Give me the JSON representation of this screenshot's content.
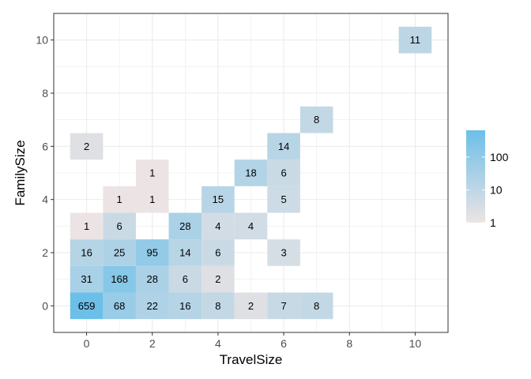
{
  "chart_data": {
    "type": "heatmap",
    "xlabel": "TravelSize",
    "ylabel": "FamilySize",
    "xlim": [
      -1,
      11
    ],
    "ylim": [
      -1,
      11
    ],
    "x_ticks": [
      0,
      2,
      4,
      6,
      8,
      10
    ],
    "y_ticks": [
      0,
      2,
      4,
      6,
      8,
      10
    ],
    "grid": true,
    "color_scale": {
      "type": "log10",
      "low_color": "#ece4e4",
      "high_color": "#6cbfe8",
      "legend_ticks": [
        1,
        10,
        100
      ],
      "legend_placement": "right"
    },
    "cells": [
      {
        "x": 0,
        "y": 0,
        "value": 659
      },
      {
        "x": 1,
        "y": 0,
        "value": 68
      },
      {
        "x": 2,
        "y": 0,
        "value": 22
      },
      {
        "x": 3,
        "y": 0,
        "value": 16
      },
      {
        "x": 4,
        "y": 0,
        "value": 8
      },
      {
        "x": 5,
        "y": 0,
        "value": 2
      },
      {
        "x": 6,
        "y": 0,
        "value": 7
      },
      {
        "x": 7,
        "y": 0,
        "value": 8
      },
      {
        "x": 0,
        "y": 1,
        "value": 31
      },
      {
        "x": 1,
        "y": 1,
        "value": 168
      },
      {
        "x": 2,
        "y": 1,
        "value": 28
      },
      {
        "x": 3,
        "y": 1,
        "value": 6
      },
      {
        "x": 4,
        "y": 1,
        "value": 2
      },
      {
        "x": 0,
        "y": 2,
        "value": 16
      },
      {
        "x": 1,
        "y": 2,
        "value": 25
      },
      {
        "x": 2,
        "y": 2,
        "value": 95
      },
      {
        "x": 3,
        "y": 2,
        "value": 14
      },
      {
        "x": 4,
        "y": 2,
        "value": 6
      },
      {
        "x": 6,
        "y": 2,
        "value": 3
      },
      {
        "x": 0,
        "y": 3,
        "value": 1
      },
      {
        "x": 1,
        "y": 3,
        "value": 6
      },
      {
        "x": 3,
        "y": 3,
        "value": 28
      },
      {
        "x": 4,
        "y": 3,
        "value": 4
      },
      {
        "x": 5,
        "y": 3,
        "value": 4
      },
      {
        "x": 1,
        "y": 4,
        "value": 1
      },
      {
        "x": 2,
        "y": 4,
        "value": 1
      },
      {
        "x": 4,
        "y": 4,
        "value": 15
      },
      {
        "x": 6,
        "y": 4,
        "value": 5
      },
      {
        "x": 2,
        "y": 5,
        "value": 1
      },
      {
        "x": 5,
        "y": 5,
        "value": 18
      },
      {
        "x": 6,
        "y": 5,
        "value": 6
      },
      {
        "x": 0,
        "y": 6,
        "value": 2
      },
      {
        "x": 6,
        "y": 6,
        "value": 14
      },
      {
        "x": 7,
        "y": 7,
        "value": 8
      },
      {
        "x": 10,
        "y": 10,
        "value": 11
      }
    ]
  }
}
